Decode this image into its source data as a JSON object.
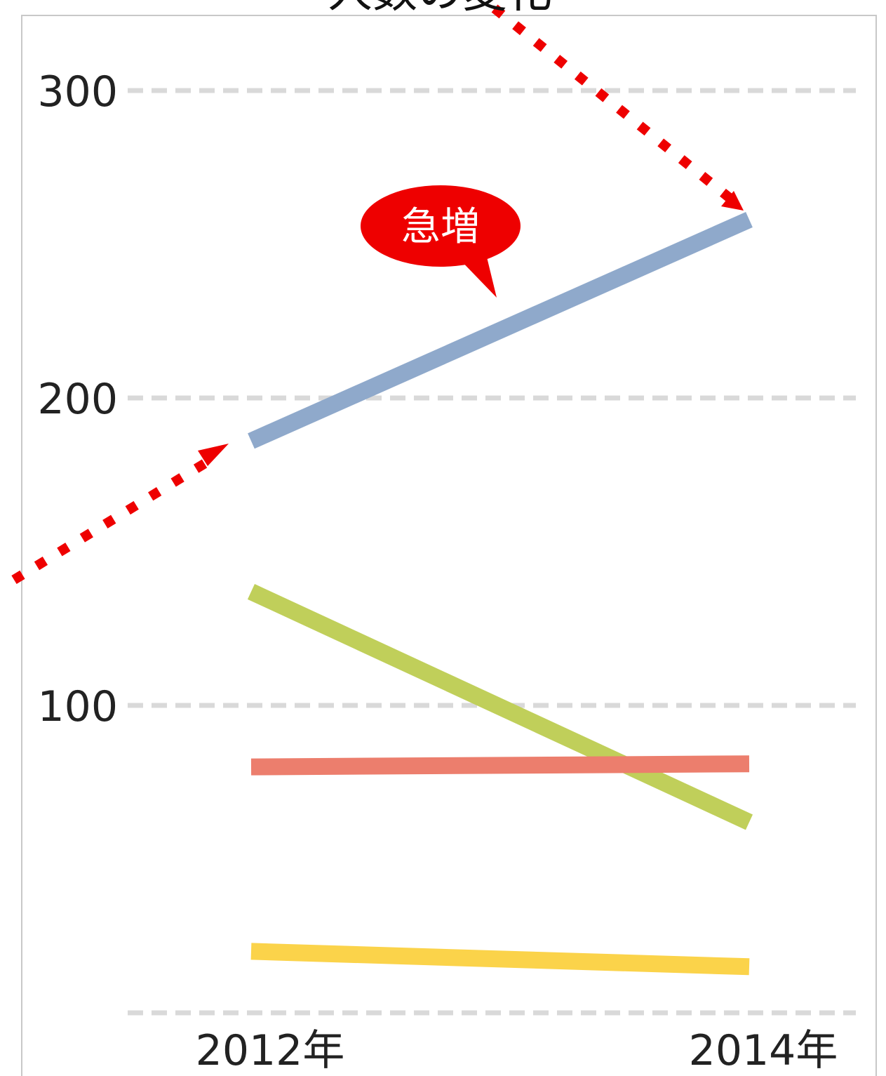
{
  "chart_data": {
    "type": "line",
    "title": "人数の変化",
    "categories": [
      "2012年",
      "2014年"
    ],
    "ylim": [
      0,
      320
    ],
    "yticks": [
      0,
      100,
      200,
      300
    ],
    "ytick_labels": [
      "",
      "100",
      "200",
      "300"
    ],
    "grid": true,
    "series": [
      {
        "values": [
          186,
          258
        ],
        "color": "#8fa9cb"
      },
      {
        "values": [
          137,
          62
        ],
        "color": "#c0cf5a"
      },
      {
        "values": [
          80,
          81
        ],
        "color": "#ec7e6d"
      },
      {
        "values": [
          20,
          15
        ],
        "color": "#fbd34a"
      }
    ],
    "annotation": {
      "text": "急増",
      "fill": "#ee0000",
      "arrow_color": "#ee0000"
    }
  }
}
